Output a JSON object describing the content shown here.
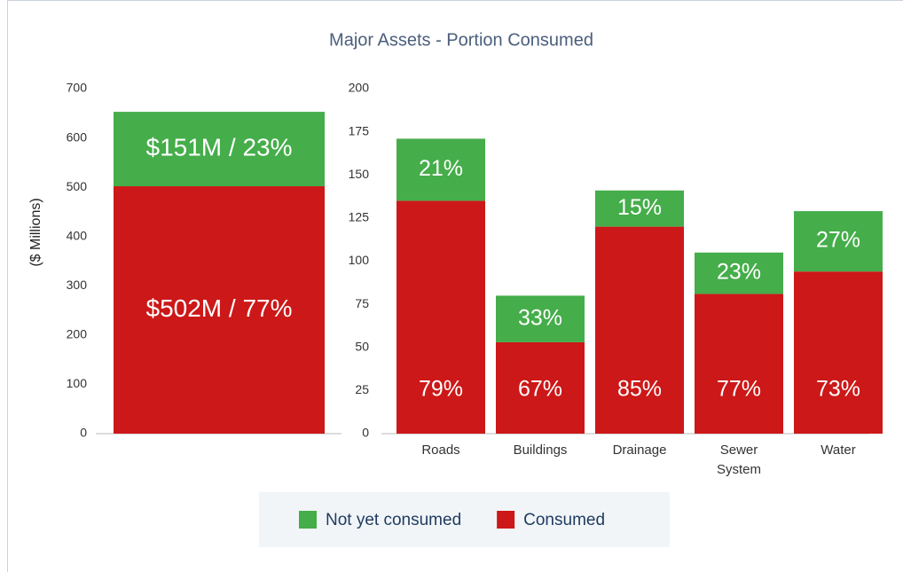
{
  "chart_data": [
    {
      "type": "bar",
      "stacked": true,
      "title": "Major Assets - Portion Consumed",
      "y_label": "($ Millions)",
      "categories": [
        null
      ],
      "series": [
        {
          "name": "Not yet consumed",
          "color": "#45ad4a",
          "values": [
            151
          ],
          "segment_labels": [
            "$151M / 23%"
          ]
        },
        {
          "name": "Consumed",
          "color": "#cc1818",
          "values": [
            502
          ],
          "segment_labels": [
            "$502M / 77%"
          ]
        }
      ],
      "ylim": [
        0,
        700
      ],
      "yticks": [
        0,
        100,
        200,
        300,
        400,
        500,
        600,
        700
      ]
    },
    {
      "type": "bar",
      "stacked": true,
      "legend": "bottom",
      "categories": [
        "Roads",
        "Buildings",
        "Drainage",
        "Sewer System",
        "Water"
      ],
      "series": [
        {
          "name": "Not yet consumed",
          "color": "#45ad4a",
          "values": [
            36,
            27,
            21,
            24,
            35
          ],
          "segment_labels": [
            "21%",
            "33%",
            "15%",
            "23%",
            "27%"
          ]
        },
        {
          "name": "Consumed",
          "color": "#cc1818",
          "values": [
            135,
            53,
            120,
            81,
            94
          ],
          "segment_labels": [
            "79%",
            "67%",
            "85%",
            "77%",
            "73%"
          ]
        }
      ],
      "ylim": [
        0,
        200
      ],
      "yticks": [
        0,
        25,
        50,
        75,
        100,
        125,
        150,
        175,
        200
      ]
    }
  ]
}
